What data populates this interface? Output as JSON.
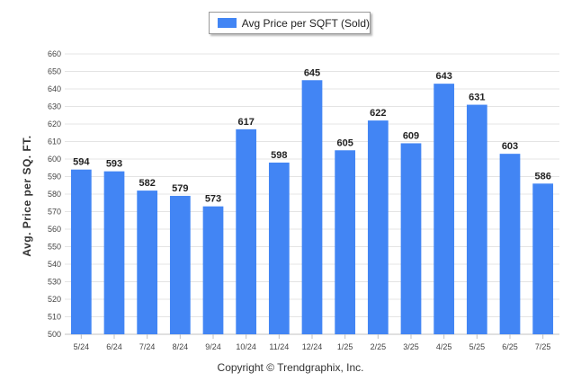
{
  "legend": {
    "label": "Avg Price per SQFT (Sold)",
    "color": "#4285f4"
  },
  "footer": {
    "copyright": "Copyright © Trendgraphix, Inc."
  },
  "chart_data": {
    "type": "bar",
    "title": "",
    "xlabel": "",
    "ylabel": "Avg. Price per SQ. FT.",
    "categories": [
      "5/24",
      "6/24",
      "7/24",
      "8/24",
      "9/24",
      "10/24",
      "11/24",
      "12/24",
      "1/25",
      "2/25",
      "3/25",
      "4/25",
      "5/25",
      "6/25",
      "7/25"
    ],
    "series": [
      {
        "name": "Avg Price per SQFT (Sold)",
        "values": [
          594,
          593,
          582,
          579,
          573,
          617,
          598,
          645,
          605,
          622,
          609,
          643,
          631,
          603,
          586
        ]
      }
    ],
    "ylim": [
      500,
      660
    ],
    "yticks": [
      500,
      510,
      520,
      530,
      540,
      550,
      560,
      570,
      580,
      590,
      600,
      610,
      620,
      630,
      640,
      650,
      660
    ],
    "grid": true,
    "legend_position": "top-center",
    "bar_color": "#4285f4"
  }
}
